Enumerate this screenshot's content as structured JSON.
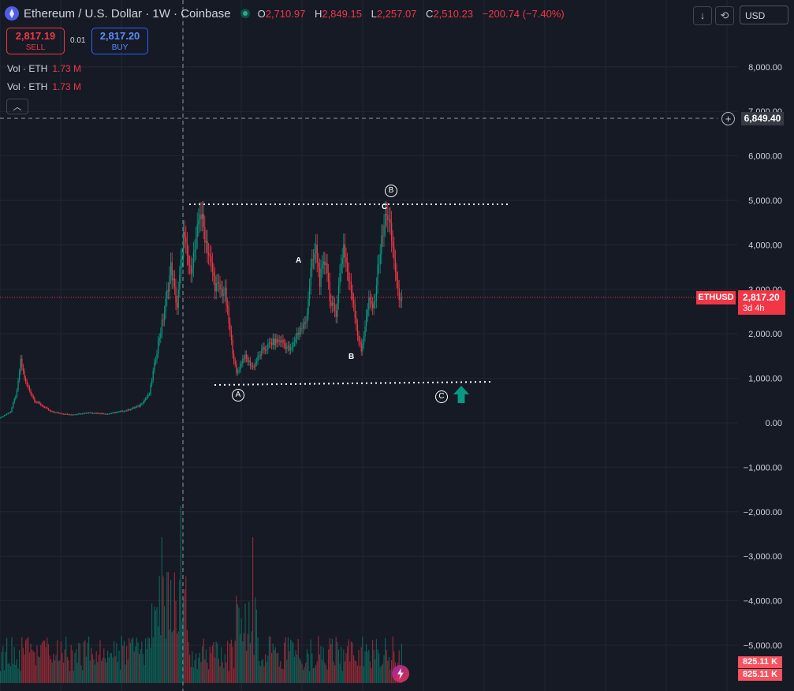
{
  "header": {
    "title": "Ethereum / U.S. Dollar · 1W · Coinbase",
    "ohlc": {
      "o_label": "O",
      "o_value": "2,710.97",
      "h_label": "H",
      "h_value": "2,849.15",
      "l_label": "L",
      "l_value": "2,257.07",
      "c_label": "C",
      "c_value": "2,510.23",
      "change": "−200.74 (−7.40%)"
    },
    "download_icon": "arrow-down-icon",
    "fullscreen_icon": "fullscreen-icon",
    "currency": "USD"
  },
  "trade": {
    "sell_price": "2,817.19",
    "sell_label": "SELL",
    "spread": "0.01",
    "buy_price": "2,817.20",
    "buy_label": "BUY"
  },
  "indicators": [
    {
      "label": "Vol · ETH",
      "value": "1.73 M"
    },
    {
      "label": "Vol · ETH",
      "value": "1.73 M"
    }
  ],
  "collapse_icon": "chevron-up-icon",
  "crosshair_price": "6,849.40",
  "symbol_tag": "ETHUSD",
  "last_price": "2,817.20",
  "countdown": "3d 4h",
  "volume_tags": [
    "825.11 K",
    "825.11 K"
  ],
  "wave_labels": {
    "circled_a": "A",
    "circled_b": "B",
    "circled_c": "C",
    "plain_a": "A",
    "plain_b": "B",
    "plain_c": "C"
  },
  "colors": {
    "background": "#161a25",
    "up": "#089981",
    "down": "#f23645",
    "grid": "#232632",
    "text": "#d1d4dc"
  },
  "chart_data": {
    "type": "candlestick",
    "timeframe": "1W",
    "yaxis_ticks": [
      "8,000.00",
      "7,000.00",
      "6,000.00",
      "5,000.00",
      "4,000.00",
      "3,000.00",
      "2,000.00",
      "1,000.00",
      "0.00",
      "−1,000.00",
      "−2,000.00",
      "−3,000.00",
      "−4,000.00",
      "−5,000.00"
    ],
    "ylim": [
      -5500,
      8600
    ],
    "price_path": [
      {
        "i": 0,
        "p": 120
      },
      {
        "i": 8,
        "p": 250
      },
      {
        "i": 13,
        "p": 700
      },
      {
        "i": 16,
        "p": 1380
      },
      {
        "i": 20,
        "p": 900
      },
      {
        "i": 27,
        "p": 500
      },
      {
        "i": 40,
        "p": 250
      },
      {
        "i": 55,
        "p": 180
      },
      {
        "i": 70,
        "p": 230
      },
      {
        "i": 85,
        "p": 200
      },
      {
        "i": 100,
        "p": 280
      },
      {
        "i": 110,
        "p": 380
      },
      {
        "i": 118,
        "p": 650
      },
      {
        "i": 125,
        "p": 1800
      },
      {
        "i": 130,
        "p": 2500
      },
      {
        "i": 135,
        "p": 3500
      },
      {
        "i": 140,
        "p": 2600
      },
      {
        "i": 145,
        "p": 4200
      },
      {
        "i": 150,
        "p": 3400
      },
      {
        "i": 155,
        "p": 4000
      },
      {
        "i": 158,
        "p": 4800
      },
      {
        "i": 165,
        "p": 3800
      },
      {
        "i": 170,
        "p": 3100
      },
      {
        "i": 178,
        "p": 2900
      },
      {
        "i": 183,
        "p": 1800
      },
      {
        "i": 187,
        "p": 1100
      },
      {
        "i": 193,
        "p": 1500
      },
      {
        "i": 200,
        "p": 1250
      },
      {
        "i": 207,
        "p": 1600
      },
      {
        "i": 215,
        "p": 1800
      },
      {
        "i": 222,
        "p": 1850
      },
      {
        "i": 230,
        "p": 1620
      },
      {
        "i": 235,
        "p": 2000
      },
      {
        "i": 242,
        "p": 2250
      },
      {
        "i": 246,
        "p": 3400
      },
      {
        "i": 250,
        "p": 3900
      },
      {
        "i": 253,
        "p": 3200
      },
      {
        "i": 258,
        "p": 3700
      },
      {
        "i": 262,
        "p": 2600
      },
      {
        "i": 266,
        "p": 2500
      },
      {
        "i": 270,
        "p": 3600
      },
      {
        "i": 272,
        "p": 4000
      },
      {
        "i": 276,
        "p": 3200
      },
      {
        "i": 280,
        "p": 2700
      },
      {
        "i": 283,
        "p": 2000
      },
      {
        "i": 286,
        "p": 1600
      },
      {
        "i": 289,
        "p": 2200
      },
      {
        "i": 292,
        "p": 2700
      },
      {
        "i": 296,
        "p": 2600
      },
      {
        "i": 300,
        "p": 3700
      },
      {
        "i": 304,
        "p": 4400
      },
      {
        "i": 306,
        "p": 4800
      },
      {
        "i": 309,
        "p": 4300
      },
      {
        "i": 312,
        "p": 3700
      },
      {
        "i": 315,
        "p": 2900
      },
      {
        "i": 318,
        "p": 2820
      }
    ],
    "last_price": 2817.2,
    "horizontal_levels": [
      {
        "price": 4900,
        "style": "dotted"
      },
      {
        "price": 850,
        "style": "dotted"
      },
      {
        "price": 6849.4,
        "style": "dashed",
        "role": "crosshair"
      }
    ]
  }
}
